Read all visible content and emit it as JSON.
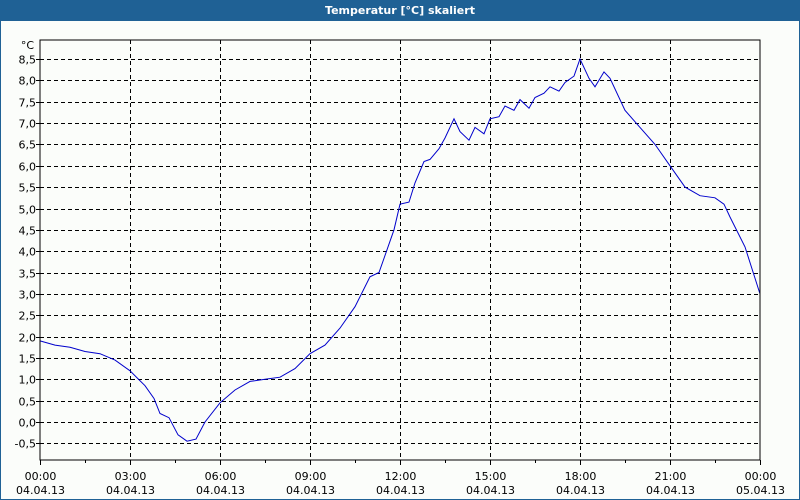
{
  "window": {
    "title": "Temperatur [°C] skaliert",
    "title_bg": "#1f6195",
    "line_color": "#0000cc"
  },
  "chart_data": {
    "type": "line",
    "title": "Temperatur [°C] skaliert",
    "xlabel": "",
    "ylabel": "°C",
    "y_unit": "°C",
    "ylim": [
      -0.9,
      9.0
    ],
    "grid": true,
    "grid_style": "dashed",
    "legend": null,
    "y_ticks": [
      "-0,5",
      "0,0",
      "0,5",
      "1,0",
      "1,5",
      "2,0",
      "2,5",
      "3,0",
      "3,5",
      "4,0",
      "4,5",
      "5,0",
      "5,5",
      "6,0",
      "6,5",
      "7,0",
      "7,5",
      "8,0",
      "8,5"
    ],
    "y_tick_values": [
      -0.5,
      0.0,
      0.5,
      1.0,
      1.5,
      2.0,
      2.5,
      3.0,
      3.5,
      4.0,
      4.5,
      5.0,
      5.5,
      6.0,
      6.5,
      7.0,
      7.5,
      8.0,
      8.5
    ],
    "x_ticks": [
      {
        "time": "00:00",
        "date": "04.04.13"
      },
      {
        "time": "03:00",
        "date": "04.04.13"
      },
      {
        "time": "06:00",
        "date": "04.04.13"
      },
      {
        "time": "09:00",
        "date": "04.04.13"
      },
      {
        "time": "12:00",
        "date": "04.04.13"
      },
      {
        "time": "15:00",
        "date": "04.04.13"
      },
      {
        "time": "18:00",
        "date": "04.04.13"
      },
      {
        "time": "21:00",
        "date": "04.04.13"
      },
      {
        "time": "00:00",
        "date": "05.04.13"
      }
    ],
    "xlim_hours": [
      0,
      24
    ],
    "series": [
      {
        "name": "Temperatur",
        "x_hours": [
          0,
          0.5,
          1,
          1.5,
          2,
          2.5,
          3,
          3.5,
          3.8,
          4,
          4.3,
          4.6,
          4.9,
          5.2,
          5.5,
          6,
          6.5,
          7,
          7.5,
          8,
          8.5,
          9,
          9.5,
          10,
          10.5,
          11,
          11.3,
          11.5,
          11.8,
          12,
          12.3,
          12.5,
          12.8,
          13,
          13.3,
          13.5,
          13.8,
          14,
          14.3,
          14.5,
          14.8,
          15,
          15.3,
          15.5,
          15.8,
          16,
          16.3,
          16.5,
          16.8,
          17,
          17.3,
          17.5,
          17.8,
          18,
          18.3,
          18.5,
          18.8,
          19,
          19.5,
          20,
          20.5,
          21,
          21.5,
          22,
          22.5,
          22.8,
          23,
          23.5,
          24
        ],
        "values": [
          1.9,
          1.8,
          1.75,
          1.65,
          1.6,
          1.45,
          1.2,
          0.85,
          0.55,
          0.2,
          0.1,
          -0.3,
          -0.45,
          -0.4,
          0.0,
          0.45,
          0.75,
          0.95,
          1.0,
          1.05,
          1.25,
          1.6,
          1.8,
          2.2,
          2.7,
          3.4,
          3.5,
          3.9,
          4.5,
          5.1,
          5.15,
          5.6,
          6.1,
          6.15,
          6.4,
          6.65,
          7.1,
          6.8,
          6.6,
          6.9,
          6.75,
          7.1,
          7.15,
          7.4,
          7.3,
          7.55,
          7.35,
          7.6,
          7.7,
          7.85,
          7.75,
          7.95,
          8.1,
          8.5,
          8.05,
          7.85,
          8.2,
          8.05,
          7.3,
          6.9,
          6.5,
          6.0,
          5.5,
          5.3,
          5.25,
          5.1,
          4.8,
          4.1,
          3.0
        ]
      }
    ]
  }
}
